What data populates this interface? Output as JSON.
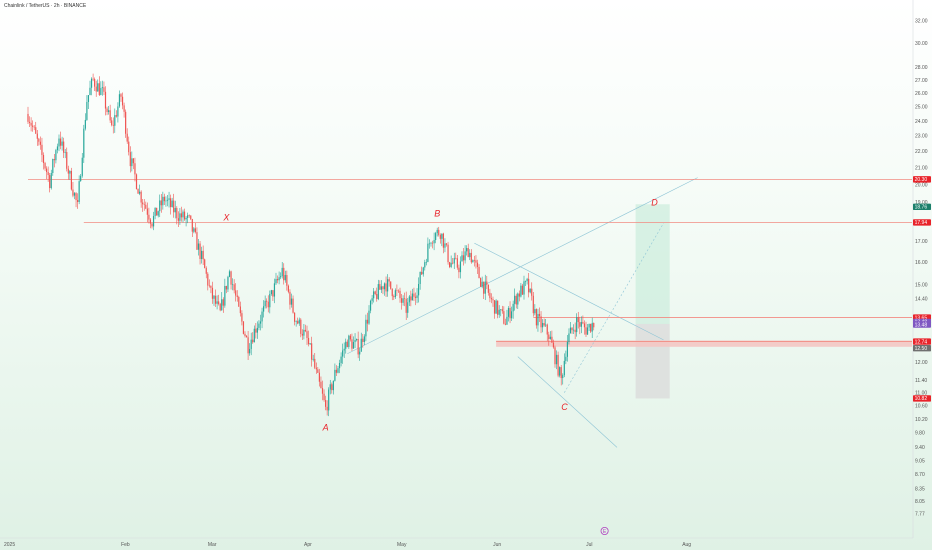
{
  "header": {
    "symbol": "Chainlink / TetherUS · 2h · BINANCE"
  },
  "colors": {
    "up": "#26a69a",
    "down": "#ef5350",
    "level_line": "#f28b82",
    "zone_fill": "#f4c7c3",
    "projection_green": "#cdeedd",
    "projection_gray": "#d9d9d9",
    "channel_line": "#8ec5d6",
    "badge_red": "#e8232a",
    "badge_green": "#1b7f6b",
    "badge_purple": "#7e57c2",
    "badge_gray": "#707070",
    "wave_label": "#e8232a",
    "event_marker": "#b040c0"
  },
  "chart_data": {
    "type": "candlestick",
    "title": "Chainlink / TetherUS · 2h · BINANCE",
    "y_axis": {
      "scale": "log",
      "range": [
        7.5,
        33.5
      ],
      "ticks": [
        32.0,
        30.0,
        28.0,
        27.0,
        26.0,
        25.0,
        24.0,
        23.0,
        22.0,
        21.0,
        20.0,
        19.0,
        17.0,
        16.0,
        15.0,
        14.4,
        13.4,
        12.0,
        11.4,
        11.0,
        10.6,
        10.2,
        9.8,
        9.4,
        9.05,
        8.7,
        8.35,
        8.05,
        7.77
      ]
    },
    "x_axis": {
      "labels": [
        "2025",
        "Feb",
        "Mar",
        "Apr",
        "May",
        "Jun",
        "Jul",
        "Aug"
      ]
    },
    "price_path": [
      {
        "date": "2025-01-01",
        "price": 24.5
      },
      {
        "date": "2025-01-05",
        "price": 22.0
      },
      {
        "date": "2025-01-08",
        "price": 20.2
      },
      {
        "date": "2025-01-11",
        "price": 23.0
      },
      {
        "date": "2025-01-14",
        "price": 20.8
      },
      {
        "date": "2025-01-17",
        "price": 18.7
      },
      {
        "date": "2025-01-20",
        "price": 25.5
      },
      {
        "date": "2025-01-22",
        "price": 27.0
      },
      {
        "date": "2025-01-25",
        "price": 26.0
      },
      {
        "date": "2025-01-28",
        "price": 23.5
      },
      {
        "date": "2025-01-31",
        "price": 25.8
      },
      {
        "date": "2025-02-03",
        "price": 21.5
      },
      {
        "date": "2025-02-06",
        "price": 19.5
      },
      {
        "date": "2025-02-10",
        "price": 18.0
      },
      {
        "date": "2025-02-14",
        "price": 19.2
      },
      {
        "date": "2025-02-18",
        "price": 18.4
      },
      {
        "date": "2025-02-22",
        "price": 18.0
      },
      {
        "date": "2025-02-26",
        "price": 16.2
      },
      {
        "date": "2025-03-01",
        "price": 14.6
      },
      {
        "date": "2025-03-04",
        "price": 13.8
      },
      {
        "date": "2025-03-07",
        "price": 15.6
      },
      {
        "date": "2025-03-10",
        "price": 13.9
      },
      {
        "date": "2025-03-13",
        "price": 12.6
      },
      {
        "date": "2025-03-16",
        "price": 13.4
      },
      {
        "date": "2025-03-20",
        "price": 14.4
      },
      {
        "date": "2025-03-24",
        "price": 15.6
      },
      {
        "date": "2025-03-28",
        "price": 13.7
      },
      {
        "date": "2025-04-01",
        "price": 12.8
      },
      {
        "date": "2025-04-04",
        "price": 11.6
      },
      {
        "date": "2025-04-07",
        "price": 10.5
      },
      {
        "date": "2025-04-10",
        "price": 11.6
      },
      {
        "date": "2025-04-14",
        "price": 12.8
      },
      {
        "date": "2025-04-18",
        "price": 12.5
      },
      {
        "date": "2025-04-22",
        "price": 14.3
      },
      {
        "date": "2025-04-26",
        "price": 15.1
      },
      {
        "date": "2025-04-30",
        "price": 14.6
      },
      {
        "date": "2025-05-03",
        "price": 14.0
      },
      {
        "date": "2025-05-07",
        "price": 15.0
      },
      {
        "date": "2025-05-11",
        "price": 17.2
      },
      {
        "date": "2025-05-14",
        "price": 17.5
      },
      {
        "date": "2025-05-17",
        "price": 16.0
      },
      {
        "date": "2025-05-20",
        "price": 15.8
      },
      {
        "date": "2025-05-23",
        "price": 16.6
      },
      {
        "date": "2025-05-27",
        "price": 15.2
      },
      {
        "date": "2025-05-31",
        "price": 14.2
      },
      {
        "date": "2025-06-04",
        "price": 13.5
      },
      {
        "date": "2025-06-08",
        "price": 14.6
      },
      {
        "date": "2025-06-11",
        "price": 15.0
      },
      {
        "date": "2025-06-14",
        "price": 13.6
      },
      {
        "date": "2025-06-18",
        "price": 13.0
      },
      {
        "date": "2025-06-22",
        "price": 11.4
      },
      {
        "date": "2025-06-24",
        "price": 12.8
      },
      {
        "date": "2025-06-27",
        "price": 13.5
      },
      {
        "date": "2025-06-30",
        "price": 13.2
      },
      {
        "date": "2025-07-03",
        "price": 13.5
      }
    ],
    "horizontal_levels": [
      {
        "price": 20.3,
        "label": "20.30",
        "badge": "red"
      },
      {
        "price": 17.94,
        "label": "17.94",
        "badge": "red"
      },
      {
        "price": 13.65,
        "label": "13.65",
        "badge": "red"
      },
      {
        "price": 12.74,
        "label": "12.74",
        "badge": "red"
      }
    ],
    "price_badges": [
      {
        "price": 18.76,
        "text": "18.76",
        "color": "green"
      },
      {
        "price": 13.48,
        "text": "13.48",
        "color": "purple"
      },
      {
        "price": 13.38,
        "text": "13.48",
        "color": "purple"
      },
      {
        "price": 12.5,
        "text": "12.50",
        "color": "gray"
      },
      {
        "price": 10.82,
        "text": "10.82",
        "color": "red"
      }
    ],
    "support_zone": {
      "from_date": "2025-06-01",
      "high": 12.78,
      "low": 12.55
    },
    "wave_labels": [
      {
        "text": "X",
        "date": "2025-03-06",
        "price": 18.2
      },
      {
        "text": "A",
        "date": "2025-04-07",
        "price": 9.95
      },
      {
        "text": "B",
        "date": "2025-05-13",
        "price": 18.4
      },
      {
        "text": "C",
        "date": "2025-06-23",
        "price": 10.55
      },
      {
        "text": "D",
        "date": "2025-07-22",
        "price": 19.0
      }
    ],
    "event_marker": {
      "date": "2025-07-06",
      "text": "E"
    }
  }
}
